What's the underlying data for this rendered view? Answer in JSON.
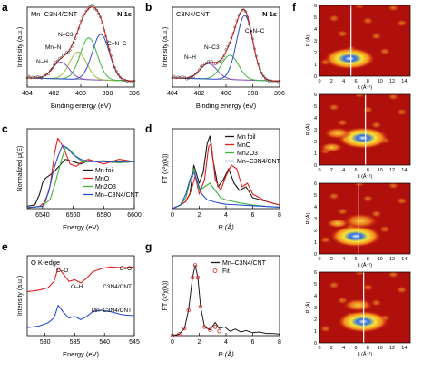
{
  "figure": {
    "panels": {
      "a": {
        "letter": "a",
        "sample": "Mn–C3N4/CNT",
        "edge": "N 1s",
        "xlabel": "Binding energy (eV)",
        "ylabel": "Intensity (a.u.)",
        "xticks": [
          "404",
          "402",
          "400",
          "398",
          "396"
        ],
        "peak_labels": [
          "N–H",
          "Mn–N",
          "N–C3",
          "C=N–C"
        ]
      },
      "b": {
        "letter": "b",
        "sample": "C3N4/CNT",
        "edge": "N 1s",
        "xlabel": "Binding energy (eV)",
        "ylabel": "Intensity (a.u.)",
        "xticks": [
          "404",
          "402",
          "400",
          "398",
          "396"
        ],
        "peak_labels": [
          "N–H",
          "N–C3",
          "C=N–C"
        ]
      },
      "c": {
        "letter": "c",
        "xlabel": "Energy (eV)",
        "ylabel": "Normalized μ(E)",
        "xticks": [
          "6540",
          "6560",
          "6580",
          "6600"
        ],
        "legend": [
          "Mn foil",
          "MnO",
          "Mn2O3",
          "Mn–C3N4/CNT"
        ]
      },
      "d": {
        "letter": "d",
        "xlabel": "R (Å)",
        "ylabel": "FT (k²χ(k))",
        "xticks": [
          "0",
          "2",
          "4",
          "6",
          "8"
        ],
        "legend": [
          "Mn foil",
          "MnO",
          "Mn2O3",
          "Mn–C3N4/CNT"
        ]
      },
      "e": {
        "letter": "e",
        "edge": "O K-edge",
        "xlabel": "Energy (eV)",
        "ylabel": "Intensity (a.u.)",
        "xticks": [
          "530",
          "535",
          "540",
          "545"
        ],
        "peak_labels": [
          "C–O",
          "O–H",
          "C=O"
        ],
        "curve_labels": [
          "C3N4/CNT",
          "Mn–C3N4/CNT"
        ]
      },
      "g": {
        "letter": "g",
        "xlabel": "R (Å)",
        "ylabel": "FT (k³χ(k))",
        "xticks": [
          "0",
          "2",
          "4",
          "6",
          "8"
        ],
        "legend": [
          "Mn–C3N4/CNT",
          "Fit"
        ]
      },
      "f": {
        "letter": "f",
        "xlabel": "k (Å⁻¹)",
        "ylabel": "R (Å)",
        "xticks": [
          "0",
          "2",
          "4",
          "6",
          "8",
          "10",
          "12",
          "14"
        ],
        "yticks": [
          "0",
          "1",
          "2",
          "3",
          "4",
          "5",
          "6"
        ]
      }
    },
    "colors": {
      "black": "#1a1a1a",
      "red": "#e0201c",
      "green": "#3cb43c",
      "blue": "#2a4fd0",
      "purple": "#8a4cc8",
      "olive": "#9bbf3a",
      "lightblue": "#6fa8e8",
      "grey": "#888888"
    }
  },
  "chart_data": [
    {
      "panel": "a",
      "type": "line",
      "title": "Mn–C3N4/CNT  N 1s",
      "xlabel": "Binding energy (eV)",
      "ylabel": "Intensity (a.u.)",
      "xlim": [
        404,
        396
      ],
      "series": [
        {
          "name": "N–H",
          "center": 401.5,
          "height": 0.22,
          "width": 0.9
        },
        {
          "name": "Mn–N",
          "center": 400.2,
          "height": 0.36,
          "width": 0.9
        },
        {
          "name": "N–C3",
          "center": 399.4,
          "height": 0.55,
          "width": 0.9
        },
        {
          "name": "C=N–C",
          "center": 398.5,
          "height": 0.6,
          "width": 0.9
        }
      ]
    },
    {
      "panel": "b",
      "type": "line",
      "title": "C3N4/CNT  N 1s",
      "xlabel": "Binding energy (eV)",
      "ylabel": "Intensity (a.u.)",
      "xlim": [
        404,
        396
      ],
      "series": [
        {
          "name": "N–H",
          "center": 401.3,
          "height": 0.2,
          "width": 0.9
        },
        {
          "name": "N–C3",
          "center": 399.7,
          "height": 0.32,
          "width": 0.9
        },
        {
          "name": "C=N–C",
          "center": 398.6,
          "height": 0.85,
          "width": 0.85
        }
      ]
    },
    {
      "panel": "c",
      "type": "line",
      "xlabel": "Energy (eV)",
      "ylabel": "Normalized μ(E)",
      "xlim": [
        6530,
        6600
      ],
      "series": [
        {
          "name": "Mn foil",
          "x": [
            6530,
            6535,
            6538,
            6540,
            6542,
            6545,
            6548,
            6552,
            6555,
            6560,
            6565,
            6570,
            6580,
            6590,
            6600
          ],
          "y": [
            0.05,
            0.08,
            0.3,
            0.55,
            0.65,
            0.72,
            0.8,
            0.95,
            1.05,
            1.0,
            0.95,
            1.02,
            1.0,
            0.98,
            1.0
          ]
        },
        {
          "name": "MnO",
          "x": [
            6530,
            6538,
            6542,
            6545,
            6548,
            6550,
            6552,
            6555,
            6558,
            6562,
            6566,
            6570,
            6580,
            6590,
            6600
          ],
          "y": [
            0.02,
            0.05,
            0.15,
            0.5,
            1.2,
            1.5,
            1.4,
            1.2,
            0.95,
            0.9,
            1.0,
            1.05,
            0.95,
            1.05,
            1.0
          ]
        },
        {
          "name": "Mn2O3",
          "x": [
            6530,
            6540,
            6545,
            6548,
            6552,
            6555,
            6558,
            6562,
            6566,
            6570,
            6580,
            6590,
            6600
          ],
          "y": [
            0.02,
            0.05,
            0.2,
            0.5,
            1.0,
            1.3,
            1.25,
            1.1,
            1.0,
            1.0,
            1.02,
            0.98,
            1.0
          ]
        },
        {
          "name": "Mn–C3N4/CNT",
          "x": [
            6530,
            6540,
            6544,
            6547,
            6550,
            6553,
            6556,
            6560,
            6565,
            6570,
            6580,
            6590,
            6600
          ],
          "y": [
            0.02,
            0.05,
            0.35,
            0.8,
            1.1,
            1.35,
            1.3,
            1.15,
            1.05,
            1.0,
            1.0,
            1.0,
            1.0
          ]
        }
      ]
    },
    {
      "panel": "d",
      "type": "line",
      "xlabel": "R (Å)",
      "ylabel": "FT (k²χ(k))",
      "xlim": [
        0,
        8
      ],
      "series": [
        {
          "name": "Mn foil",
          "x": [
            0,
            0.6,
            1.0,
            1.3,
            1.6,
            2.0,
            2.3,
            2.6,
            2.8,
            3.0,
            3.4,
            3.8,
            4.2,
            4.6,
            5.0,
            5.5,
            6,
            7,
            8
          ],
          "y": [
            0,
            0.05,
            0.1,
            0.2,
            0.6,
            0.35,
            0.5,
            0.9,
            1.0,
            0.7,
            0.3,
            0.4,
            0.55,
            0.35,
            0.25,
            0.3,
            0.15,
            0.1,
            0.05
          ]
        },
        {
          "name": "MnO",
          "x": [
            0,
            0.6,
            1.0,
            1.4,
            1.7,
            2.0,
            2.4,
            2.7,
            2.9,
            3.2,
            3.6,
            4.0,
            4.4,
            4.8,
            5.2,
            5.6,
            6.0,
            6.5,
            7,
            8
          ],
          "y": [
            0,
            0.05,
            0.1,
            0.25,
            0.45,
            0.2,
            0.4,
            0.85,
            0.9,
            0.4,
            0.25,
            0.45,
            0.6,
            0.55,
            0.3,
            0.35,
            0.2,
            0.15,
            0.1,
            0.05
          ]
        },
        {
          "name": "Mn2O3",
          "x": [
            0,
            0.6,
            1.0,
            1.4,
            1.6,
            2.0,
            2.4,
            2.8,
            3.2,
            3.6,
            4.0,
            4.5,
            5,
            6,
            7,
            8
          ],
          "y": [
            0,
            0.05,
            0.15,
            0.45,
            0.55,
            0.25,
            0.3,
            0.35,
            0.25,
            0.15,
            0.12,
            0.1,
            0.08,
            0.05,
            0.03,
            0.02
          ]
        },
        {
          "name": "Mn–C3N4/CNT",
          "x": [
            0,
            0.6,
            1.0,
            1.3,
            1.6,
            1.9,
            2.2,
            2.6,
            3.0,
            3.4,
            4.0,
            5,
            6,
            7,
            8
          ],
          "y": [
            0,
            0.05,
            0.2,
            0.4,
            0.5,
            0.35,
            0.2,
            0.12,
            0.1,
            0.08,
            0.06,
            0.05,
            0.04,
            0.03,
            0.02
          ]
        }
      ]
    },
    {
      "panel": "e",
      "type": "line",
      "title": "O K-edge",
      "xlabel": "Energy (eV)",
      "ylabel": "Intensity (a.u.)",
      "xlim": [
        527,
        545
      ],
      "series": [
        {
          "name": "C3N4/CNT",
          "x": [
            527,
            529,
            530.5,
            531.5,
            532.2,
            533,
            534,
            535,
            536,
            537,
            538,
            539.5,
            541,
            543,
            545
          ],
          "y": [
            0.55,
            0.57,
            0.6,
            0.68,
            0.85,
            0.78,
            0.68,
            0.7,
            0.66,
            0.72,
            0.8,
            0.84,
            0.86,
            0.85,
            0.86
          ]
        },
        {
          "name": "Mn–C3N4/CNT",
          "x": [
            527,
            529,
            530.5,
            531.5,
            532.2,
            533,
            534,
            535,
            536,
            537,
            538,
            539.5,
            541,
            543,
            545
          ],
          "y": [
            0.1,
            0.12,
            0.16,
            0.22,
            0.38,
            0.3,
            0.22,
            0.24,
            0.2,
            0.24,
            0.3,
            0.32,
            0.3,
            0.26,
            0.25
          ]
        }
      ]
    },
    {
      "panel": "g",
      "type": "line",
      "xlabel": "R (Å)",
      "ylabel": "FT (k³χ(k))",
      "xlim": [
        0,
        8
      ],
      "series": [
        {
          "name": "Mn–C3N4/CNT",
          "x": [
            0,
            0.5,
            0.9,
            1.2,
            1.5,
            1.7,
            1.9,
            2.1,
            2.4,
            2.8,
            3.2,
            3.5,
            3.9,
            4.3,
            4.7,
            5.1,
            5.5,
            6,
            6.5,
            7,
            7.5,
            8
          ],
          "y": [
            0,
            0.02,
            0.1,
            0.35,
            0.8,
            0.97,
            0.8,
            0.4,
            0.12,
            0.08,
            0.18,
            0.1,
            0.12,
            0.06,
            0.09,
            0.05,
            0.07,
            0.04,
            0.05,
            0.03,
            0.03,
            0.02
          ]
        },
        {
          "name": "Fit",
          "x": [
            0,
            0.5,
            0.9,
            1.2,
            1.5,
            1.7,
            1.9,
            2.1,
            2.4,
            2.8,
            3.2,
            3.5
          ],
          "y": [
            0,
            0.02,
            0.1,
            0.35,
            0.8,
            0.97,
            0.8,
            0.4,
            0.12,
            0.08,
            0.12,
            0.06
          ]
        }
      ]
    },
    {
      "panel": "f",
      "type": "heatmap",
      "xlabel": "k (Å⁻¹)",
      "ylabel": "R (Å)",
      "xlim": [
        0,
        15
      ],
      "ylim": [
        0,
        6
      ],
      "maps": [
        {
          "marker_k": 5.2,
          "blobs": [
            [
              5.0,
              1.5,
              1.0
            ]
          ]
        },
        {
          "marker_k": 7.6,
          "blobs": [
            [
              7.2,
              2.3,
              1.0
            ],
            [
              3.0,
              2.7,
              0.55
            ],
            [
              2.0,
              1.5,
              0.45
            ]
          ]
        },
        {
          "marker_k": 6.5,
          "blobs": [
            [
              6.0,
              1.5,
              1.0
            ],
            [
              6.8,
              2.8,
              0.7
            ],
            [
              3.0,
              2.6,
              0.45
            ]
          ]
        },
        {
          "marker_k": 7.3,
          "blobs": [
            [
              7.2,
              1.8,
              1.0
            ],
            [
              6.4,
              3.2,
              0.6
            ]
          ]
        }
      ]
    }
  ]
}
